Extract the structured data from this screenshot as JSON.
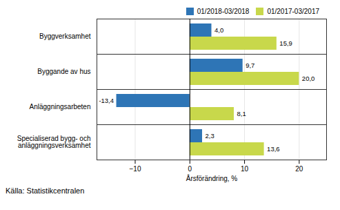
{
  "chart_data": {
    "type": "bar",
    "orientation": "horizontal",
    "categories": [
      "Specialiserad bygg- och\nanläggningsverksamhet",
      "Anläggningsarbeten",
      "Byggande av hus",
      "Byggverksamhet"
    ],
    "series": [
      {
        "name": "01/2018-03/2018",
        "color": "#2e75b6",
        "values": [
          2.3,
          -13.4,
          9.7,
          4.0
        ],
        "value_labels": [
          "2,3",
          "-13,4",
          "9,7",
          "4,0"
        ]
      },
      {
        "name": "01/2017-03/2017",
        "color": "#c8d84b",
        "values": [
          13.6,
          8.1,
          20.0,
          15.9
        ],
        "value_labels": [
          "13,6",
          "8,1",
          "20,0",
          "15,9"
        ]
      }
    ],
    "xlabel": "Årsförändring, %",
    "xlim": [
      -17,
      25
    ],
    "xticks": [
      -10,
      0,
      10,
      20
    ],
    "grid": true,
    "legend": "upper right",
    "data_labels": true,
    "annotations": [
      "Källa: Statistikcentralen"
    ]
  }
}
